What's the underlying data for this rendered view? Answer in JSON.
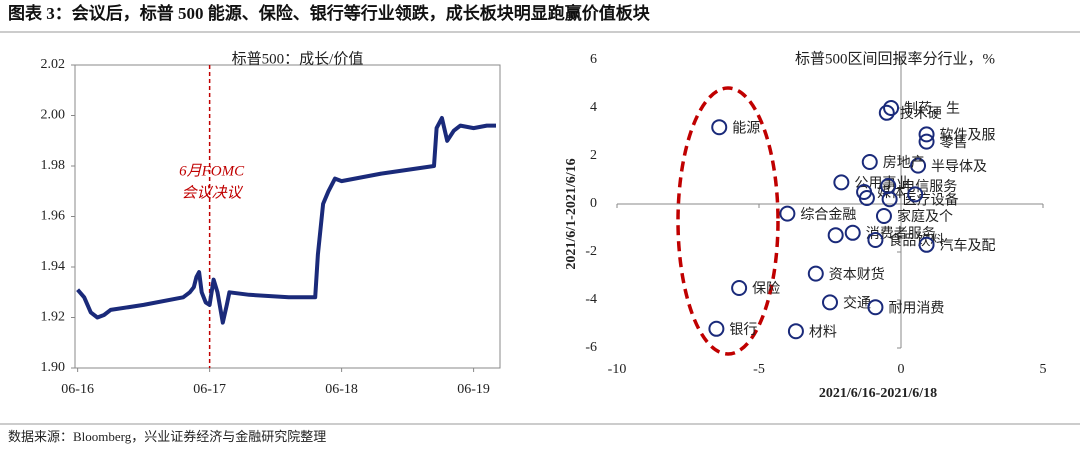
{
  "title": "图表 3：会议后，标普 500 能源、保险、银行等行业领跌，成长板块明显跑赢价值板块",
  "source": "数据来源：Bloomberg，兴业证券经济与金融研究院整理",
  "chart_data": [
    {
      "type": "line",
      "title": "标普500：成长/价值",
      "color": "#1a2a7a",
      "x": [
        0,
        0.05,
        0.1,
        0.15,
        0.2,
        0.25,
        0.5,
        0.8,
        0.85,
        0.88,
        0.9,
        0.92,
        0.94,
        0.97,
        1.0,
        1.03,
        1.06,
        1.1,
        1.13,
        1.15,
        1.3,
        1.6,
        1.8,
        1.82,
        1.86,
        1.9,
        1.95,
        2.0,
        2.3,
        2.7,
        2.72,
        2.76,
        2.8,
        2.85,
        2.9,
        3.0,
        3.1,
        3.17
      ],
      "values": [
        1.931,
        1.928,
        1.922,
        1.92,
        1.921,
        1.923,
        1.925,
        1.928,
        1.93,
        1.932,
        1.936,
        1.938,
        1.93,
        1.926,
        1.925,
        1.935,
        1.93,
        1.918,
        1.925,
        1.93,
        1.929,
        1.928,
        1.928,
        1.945,
        1.965,
        1.97,
        1.975,
        1.974,
        1.977,
        1.98,
        1.995,
        1.999,
        1.99,
        1.994,
        1.996,
        1.995,
        1.996,
        1.996
      ],
      "xlim": [
        -0.02,
        3.2
      ],
      "xticks": [
        {
          "value": 0,
          "label": "06-16"
        },
        {
          "value": 1,
          "label": "06-17"
        },
        {
          "value": 2,
          "label": "06-18"
        },
        {
          "value": 3,
          "label": "06-19"
        }
      ],
      "ylim": [
        1.9,
        2.02
      ],
      "yticks": [
        {
          "value": 1.9,
          "label": "1.90"
        },
        1.92,
        1.94,
        1.96,
        1.98,
        {
          "value": 2.0,
          "label": "2.00"
        },
        2.02
      ],
      "vline": 1,
      "vline_color": "#c00000",
      "annotation": [
        "6月FOMC",
        "会议决议"
      ]
    },
    {
      "type": "scatter",
      "title": "标普500区间回报率分行业，%",
      "color": "#1a2a7a",
      "x_label": "2021/6/16-2021/6/18",
      "y_label": "2021/6/1-2021/6/16",
      "x": [
        -6.4,
        -5.7,
        -6.5,
        -3.7,
        -3.0,
        -2.5,
        -0.9,
        -4.0,
        -2.3,
        -1.7,
        -0.9,
        0.9,
        -0.6,
        -0.35,
        -0.5,
        0.9,
        0.9,
        0.6,
        -1.1,
        -2.1,
        -1.3,
        -1.2,
        -0.45,
        -0.4,
        0.5
      ],
      "values": [
        3.2,
        -3.5,
        -5.2,
        -5.3,
        -2.9,
        -4.1,
        -4.3,
        -0.4,
        -1.3,
        -1.2,
        -1.5,
        -1.7,
        -0.5,
        4.0,
        3.8,
        2.9,
        2.6,
        1.6,
        1.75,
        0.9,
        0.5,
        0.25,
        0.75,
        0.2,
        0.4
      ],
      "labels": [
        "能源",
        "保险",
        "银行",
        "材料",
        "资本财货",
        "交通",
        "耐用消费",
        "综合金融",
        null,
        "消费者服务",
        "食品饮料",
        "汽车及配",
        "家庭及个",
        "制药、生",
        "技术硬",
        "软件及服",
        "零售",
        "半导体及",
        "房地产",
        "公用事业",
        "媒体",
        null,
        "电信服务",
        "医疗设备",
        null
      ],
      "xlim": [
        -10,
        5
      ],
      "xticks": [
        -10,
        -5,
        0,
        5
      ],
      "ylim": [
        -6,
        6
      ],
      "yticks": [
        -6,
        -4,
        -2,
        0,
        2,
        4,
        6
      ],
      "highlight_color": "#c00000"
    }
  ]
}
